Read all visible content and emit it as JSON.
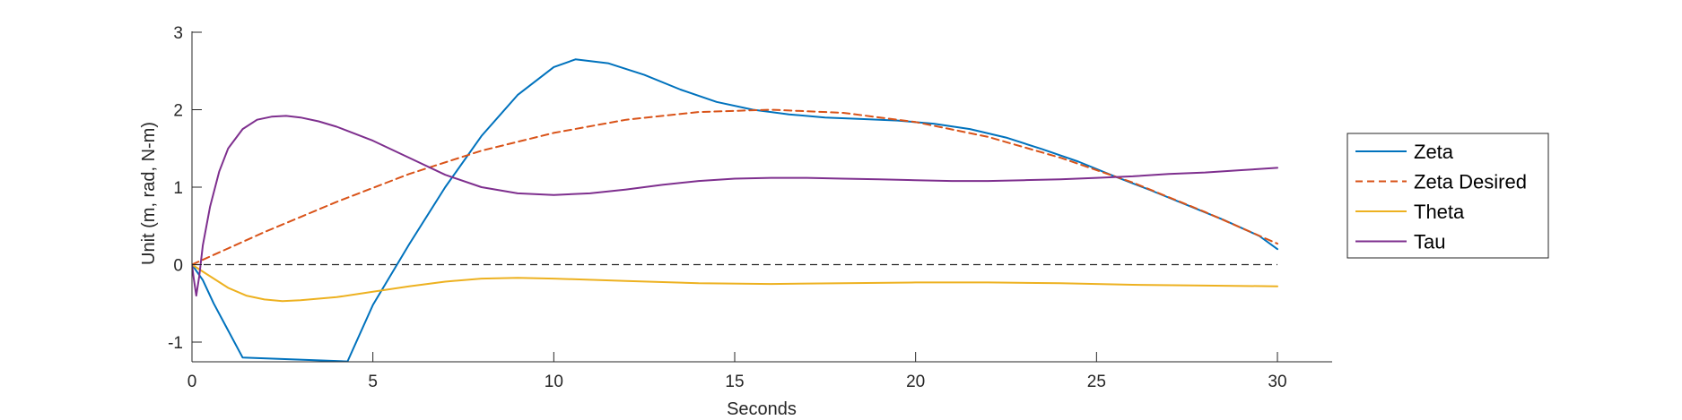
{
  "chart_data": {
    "type": "line",
    "title": "",
    "xlabel": "Seconds",
    "ylabel": "Unit (m, rad, N-m)",
    "xlim": [
      0,
      31.5
    ],
    "ylim": [
      -1.25,
      3.05
    ],
    "xticks": [
      0,
      5,
      10,
      15,
      20,
      25,
      30
    ],
    "yticks": [
      -1,
      0,
      1,
      2,
      3
    ],
    "grid": false,
    "legend_position": "right",
    "reference_line": {
      "y": 0,
      "style": "dashed",
      "color": "#262626"
    },
    "series": [
      {
        "name": "Zeta",
        "color": "#0072BD",
        "style": "solid",
        "x": [
          0,
          0.3,
          0.6,
          1.0,
          1.4,
          4.3,
          5.0,
          6.0,
          7.0,
          8.0,
          9.0,
          10.0,
          10.6,
          11.5,
          12.5,
          13.5,
          14.5,
          15.5,
          16.5,
          17.5,
          18.5,
          19.5,
          20.5,
          21.5,
          22.5,
          23.5,
          24.5,
          25.5,
          26.5,
          27.5,
          28.5,
          29.5,
          30.0
        ],
        "y": [
          0,
          -0.2,
          -0.5,
          -0.85,
          -1.2,
          -1.25,
          -0.52,
          0.26,
          1.0,
          1.66,
          2.19,
          2.55,
          2.65,
          2.6,
          2.45,
          2.26,
          2.1,
          2.0,
          1.94,
          1.9,
          1.88,
          1.86,
          1.82,
          1.75,
          1.64,
          1.49,
          1.33,
          1.14,
          0.96,
          0.77,
          0.58,
          0.37,
          0.2
        ]
      },
      {
        "name": "Zeta Desired",
        "color": "#D95319",
        "style": "dashed",
        "x": [
          0,
          2,
          4,
          6,
          8,
          10,
          12,
          14,
          16,
          18,
          20,
          22,
          24,
          26,
          28,
          30
        ],
        "y": [
          0,
          0.42,
          0.81,
          1.17,
          1.47,
          1.7,
          1.87,
          1.97,
          2.0,
          1.96,
          1.84,
          1.65,
          1.38,
          1.06,
          0.68,
          0.27
        ]
      },
      {
        "name": "Theta",
        "color": "#EDB120",
        "style": "solid",
        "x": [
          0,
          0.5,
          1,
          1.5,
          2,
          2.5,
          3,
          4,
          5,
          6,
          7,
          8,
          9,
          10,
          12,
          14,
          16,
          18,
          20,
          22,
          24,
          26,
          28,
          30
        ],
        "y": [
          0,
          -0.15,
          -0.3,
          -0.4,
          -0.45,
          -0.47,
          -0.46,
          -0.42,
          -0.35,
          -0.28,
          -0.22,
          -0.18,
          -0.17,
          -0.18,
          -0.21,
          -0.24,
          -0.25,
          -0.24,
          -0.23,
          -0.23,
          -0.24,
          -0.26,
          -0.27,
          -0.28
        ]
      },
      {
        "name": "Tau",
        "color": "#7E2F8E",
        "style": "solid",
        "x": [
          0,
          0.05,
          0.12,
          0.2,
          0.3,
          0.5,
          0.75,
          1.0,
          1.4,
          1.8,
          2.2,
          2.6,
          3.0,
          3.5,
          4,
          5,
          6,
          7,
          8,
          9,
          10,
          11,
          12,
          13,
          14,
          15,
          16,
          17,
          18,
          19,
          20,
          21,
          22,
          23,
          24,
          25,
          26,
          27,
          28,
          29,
          30
        ],
        "y": [
          0,
          -0.18,
          -0.4,
          -0.15,
          0.25,
          0.75,
          1.2,
          1.5,
          1.75,
          1.87,
          1.91,
          1.92,
          1.9,
          1.85,
          1.78,
          1.6,
          1.38,
          1.16,
          1.0,
          0.92,
          0.9,
          0.92,
          0.97,
          1.03,
          1.08,
          1.11,
          1.12,
          1.12,
          1.11,
          1.1,
          1.09,
          1.08,
          1.08,
          1.09,
          1.1,
          1.12,
          1.14,
          1.17,
          1.19,
          1.22,
          1.25
        ]
      }
    ]
  }
}
